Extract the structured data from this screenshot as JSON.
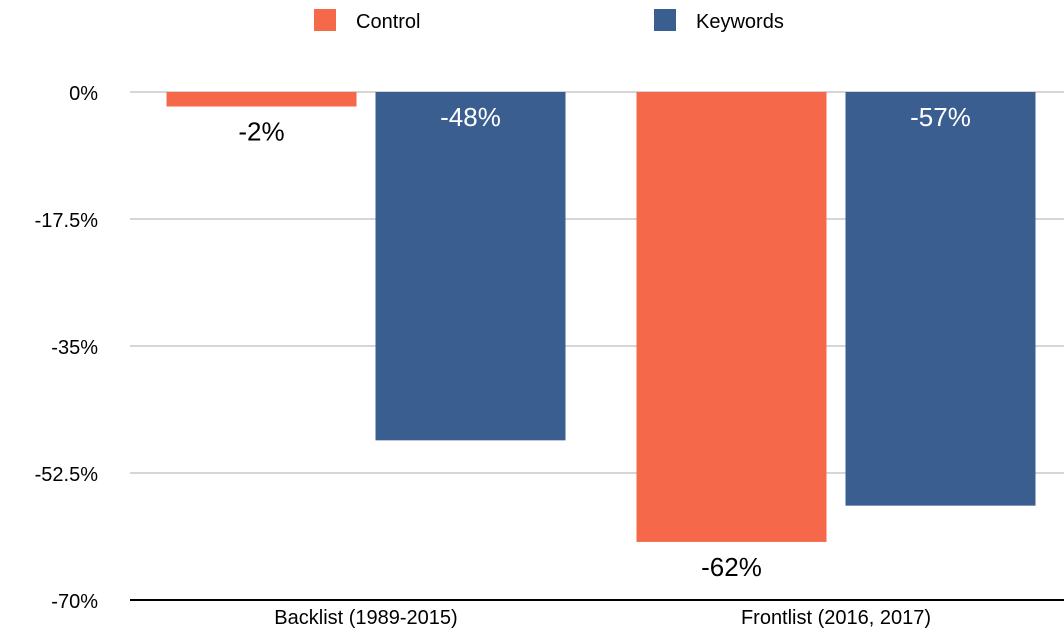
{
  "colors": {
    "control": "#f5694a",
    "keywords": "#3b5e91",
    "grid": "#c8c8c8",
    "axis": "#000000",
    "text": "#000000",
    "label_on_bar": "#ffffff"
  },
  "chart_data": {
    "type": "bar",
    "categories": [
      "Backlist (1989-2015)",
      "Frontlist (2016, 2017)"
    ],
    "series": [
      {
        "name": "Control",
        "values": [
          -2,
          -62
        ],
        "labels": [
          "-2%",
          "-62%"
        ]
      },
      {
        "name": "Keywords",
        "values": [
          -48,
          -57
        ],
        "labels": [
          "-48%",
          "-57%"
        ]
      }
    ],
    "yticks": [
      0,
      -17.5,
      -35,
      -52.5,
      -70
    ],
    "ytick_labels": [
      "0%",
      "-17.5%",
      "-35%",
      "-52.5%",
      "-70%"
    ],
    "ylim": [
      -70,
      0
    ],
    "legend": "top",
    "grid": true,
    "title": "",
    "xlabel": "",
    "ylabel": ""
  }
}
